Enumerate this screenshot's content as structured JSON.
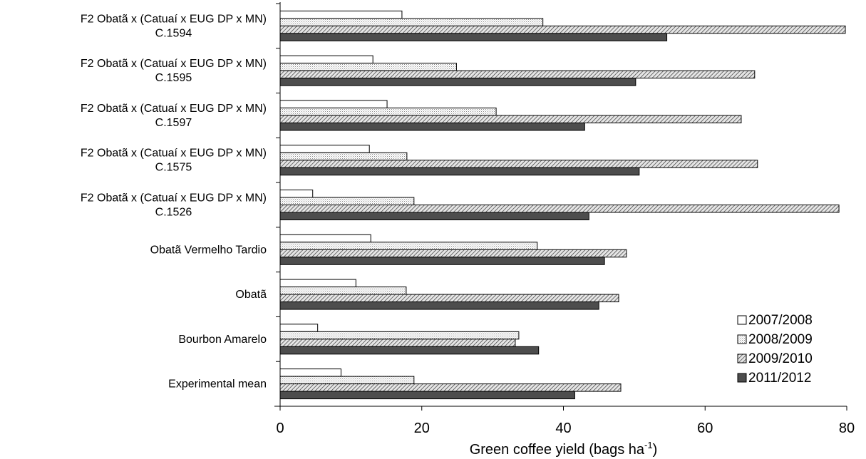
{
  "chart_data": {
    "type": "bar",
    "orientation": "horizontal",
    "categories": [
      [
        "F2 Obatã x (Catuaí x EUG DP x MN)",
        "C.1594"
      ],
      [
        "F2 Obatã x (Catuaí x EUG DP x MN)",
        "C.1595"
      ],
      [
        "F2 Obatã x (Catuaí x EUG DP x MN)",
        "C.1597"
      ],
      [
        "F2 Obatã x (Catuaí x EUG DP x MN)",
        "C.1575"
      ],
      [
        "F2 Obatã x (Catuaí x EUG DP x MN)",
        "C.1526"
      ],
      [
        "Obatã Vermelho Tardio"
      ],
      [
        "Obatã"
      ],
      [
        "Bourbon Amarelo"
      ],
      [
        "Experimental mean"
      ]
    ],
    "series": [
      {
        "name": "2007/2008",
        "fill": "white",
        "values": [
          17.2,
          13.1,
          15.1,
          12.6,
          4.6,
          12.8,
          10.7,
          5.3,
          8.6
        ]
      },
      {
        "name": "2008/2009",
        "fill": "dots",
        "values": [
          37.1,
          24.9,
          30.5,
          17.9,
          18.9,
          36.3,
          17.8,
          33.7,
          18.9
        ]
      },
      {
        "name": "2009/2010",
        "fill": "hatch",
        "values": [
          79.8,
          67.0,
          65.1,
          67.4,
          78.9,
          48.9,
          47.8,
          33.2,
          48.1
        ]
      },
      {
        "name": "2011/2012",
        "fill": "dark",
        "values": [
          54.6,
          50.2,
          43.0,
          50.7,
          43.6,
          45.8,
          45.0,
          36.5,
          41.6
        ]
      }
    ],
    "xlabel": "Green coffee yield (bags ha",
    "xlabel_superscript": "-1",
    "xlabel_suffix": ")",
    "xlim": [
      0,
      80
    ],
    "xticks": [
      0,
      20,
      40,
      60,
      80
    ],
    "grid": false,
    "legend_position": "bottom-right"
  },
  "colors": {
    "outline": "#000000",
    "dots": "#9a9a9a",
    "hatch": "#5a5a5a",
    "dark": "#4d4d4d"
  }
}
